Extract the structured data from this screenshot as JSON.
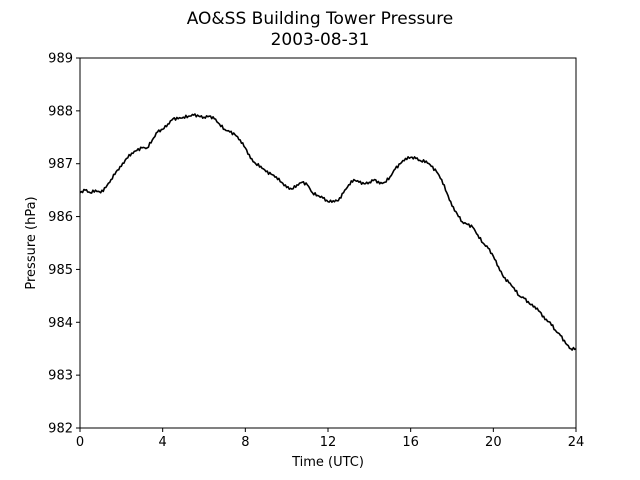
{
  "chart_data": {
    "type": "line",
    "title": "AO&SS Building Tower Pressure",
    "subtitle": "2003-08-31",
    "xlabel": "Time (UTC)",
    "ylabel": "Pressure (hPa)",
    "xlim": [
      0,
      24
    ],
    "ylim": [
      982,
      989
    ],
    "xticks": [
      0,
      4,
      8,
      12,
      16,
      20,
      24
    ],
    "yticks": [
      982,
      983,
      984,
      985,
      986,
      987,
      988,
      989
    ],
    "grid": false,
    "legend": "none",
    "line_color": "#000000",
    "series": [
      {
        "x": [
          0,
          0.25,
          0.5,
          0.75,
          1.0,
          1.25,
          1.5,
          1.75,
          2.0,
          2.25,
          2.5,
          2.75,
          3.0,
          3.25,
          3.5,
          3.75,
          4.0,
          4.25,
          4.5,
          4.75,
          5.0,
          5.25,
          5.5,
          5.75,
          6.0,
          6.25,
          6.5,
          6.75,
          7.0,
          7.25,
          7.5,
          7.75,
          8.0,
          8.25,
          8.5,
          8.75,
          9.0,
          9.25,
          9.5,
          9.75,
          10.0,
          10.25,
          10.5,
          10.75,
          11.0,
          11.25,
          11.5,
          11.75,
          12.0,
          12.25,
          12.5,
          12.75,
          13.0,
          13.25,
          13.5,
          13.75,
          14.0,
          14.25,
          14.5,
          14.75,
          15.0,
          15.25,
          15.5,
          15.75,
          16.0,
          16.25,
          16.5,
          16.75,
          17.0,
          17.25,
          17.5,
          17.75,
          18.0,
          18.25,
          18.5,
          18.75,
          19.0,
          19.25,
          19.5,
          19.75,
          20.0,
          20.25,
          20.5,
          20.75,
          21.0,
          21.25,
          21.5,
          21.75,
          22.0,
          22.25,
          22.5,
          22.75,
          23.0,
          23.25,
          23.5,
          23.75,
          24.0
        ],
        "y": [
          986.45,
          986.5,
          986.45,
          986.5,
          986.45,
          986.55,
          986.7,
          986.85,
          986.95,
          987.1,
          987.2,
          987.25,
          987.3,
          987.3,
          987.45,
          987.6,
          987.65,
          987.75,
          987.85,
          987.85,
          987.88,
          987.9,
          987.92,
          987.9,
          987.88,
          987.9,
          987.85,
          987.75,
          987.65,
          987.6,
          987.55,
          987.45,
          987.3,
          987.1,
          987.0,
          986.95,
          986.85,
          986.8,
          986.75,
          986.65,
          986.55,
          986.52,
          986.6,
          986.65,
          986.6,
          986.45,
          986.4,
          986.35,
          986.28,
          986.3,
          986.3,
          986.45,
          986.6,
          986.7,
          986.65,
          986.62,
          986.65,
          986.7,
          986.62,
          986.65,
          986.75,
          986.9,
          987.0,
          987.1,
          987.12,
          987.1,
          987.05,
          987.05,
          986.95,
          986.85,
          986.7,
          986.45,
          986.2,
          986.05,
          985.9,
          985.85,
          985.8,
          985.65,
          985.5,
          985.4,
          985.25,
          985.05,
          984.85,
          984.75,
          984.65,
          984.5,
          984.45,
          984.35,
          984.3,
          984.2,
          984.05,
          984.0,
          983.85,
          983.75,
          983.6,
          983.5,
          983.5
        ]
      }
    ]
  }
}
